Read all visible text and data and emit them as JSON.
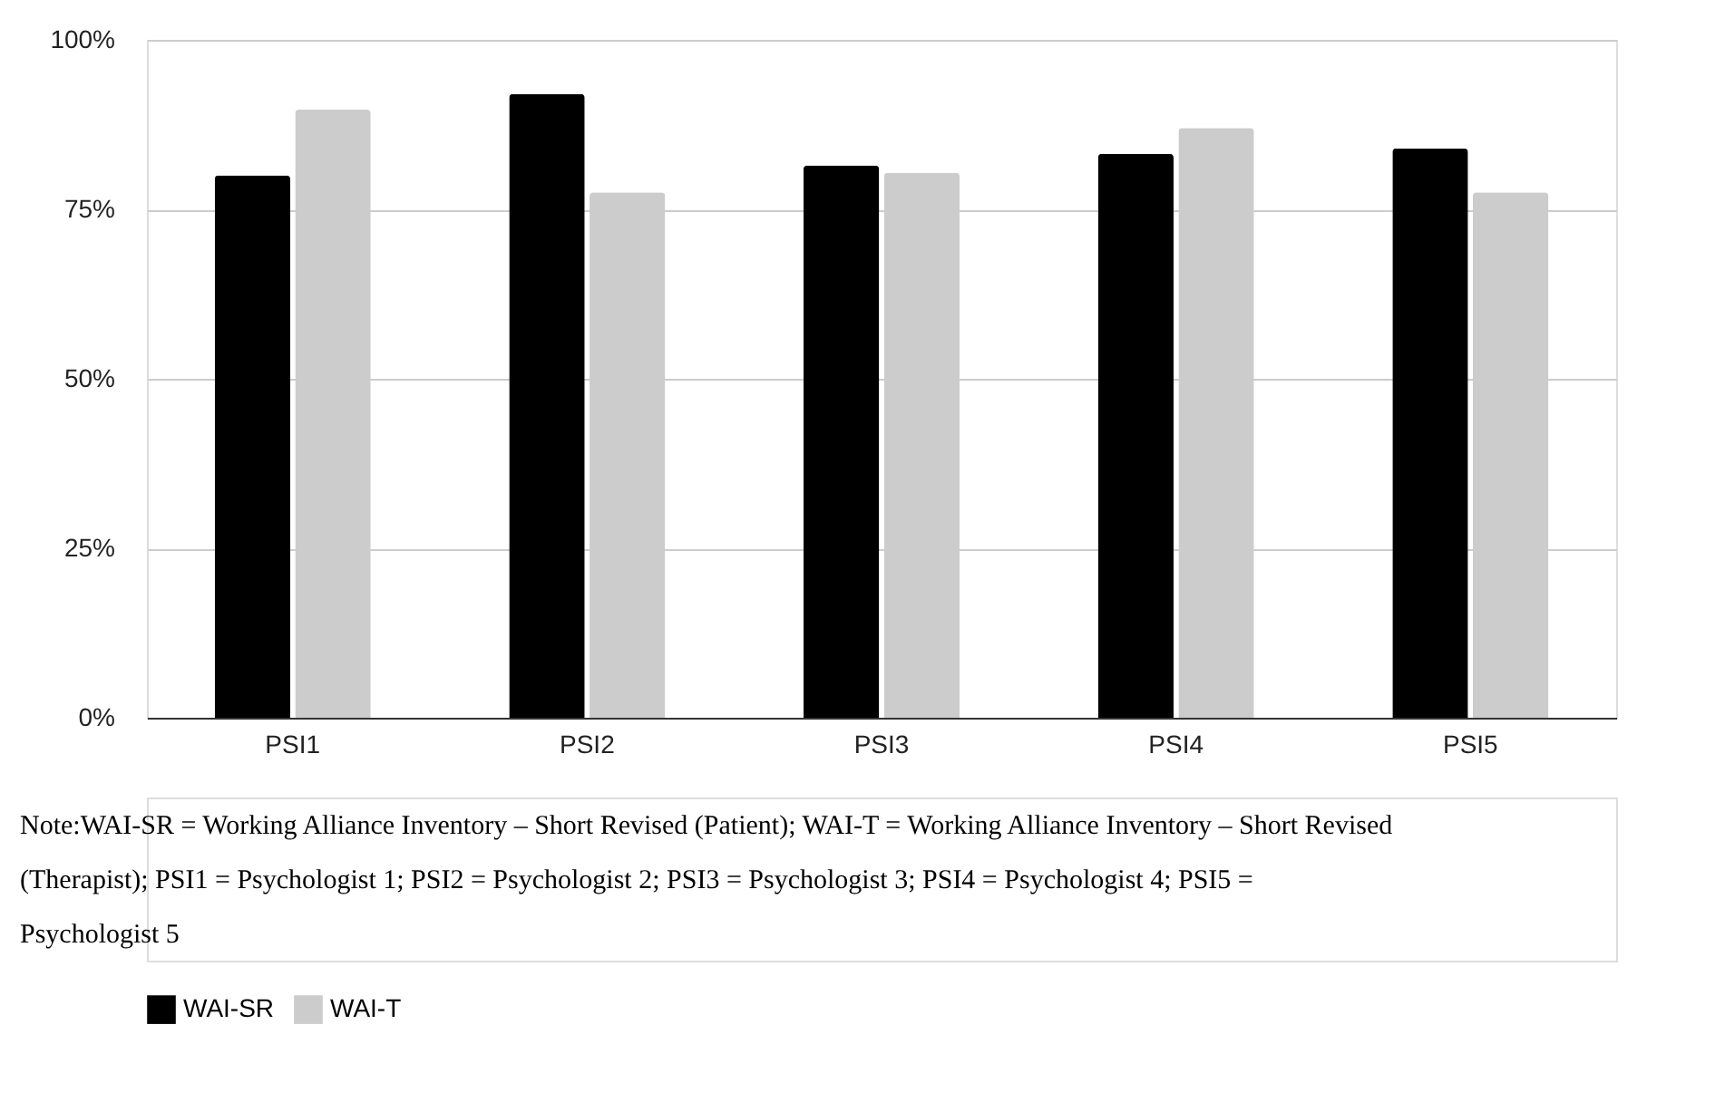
{
  "chart_data": {
    "type": "bar",
    "categories": [
      "PSI1",
      "PSI2",
      "PSI3",
      "PSI4",
      "PSI5"
    ],
    "series": [
      {
        "name": "WAI-SR",
        "color": "#000000",
        "values": [
          80,
          92,
          81.5,
          83.2,
          84
        ]
      },
      {
        "name": "WAI-T",
        "color": "#cccccc",
        "values": [
          89.7,
          77.5,
          80.4,
          87,
          77.5
        ]
      }
    ],
    "ylim": [
      0,
      100
    ],
    "yticks": [
      {
        "value": 0,
        "label": "0%"
      },
      {
        "value": 25,
        "label": "25%"
      },
      {
        "value": 50,
        "label": "50%"
      },
      {
        "value": 75,
        "label": "75%"
      },
      {
        "value": 100,
        "label": "100%"
      }
    ],
    "grid": "y",
    "legend": "bottom",
    "annotations": [
      "Note:WAI-SR = Working Alliance Inventory – Short Revised (Patient); WAI-T = Working Alliance Inventory – Short Revised (Therapist); PSI1 = Psychologist 1; PSI2 = Psychologist 2; PSI3 = Psychologist 3; PSI4 = Psychologist 4; PSI5 = Psychologist 5"
    ]
  }
}
